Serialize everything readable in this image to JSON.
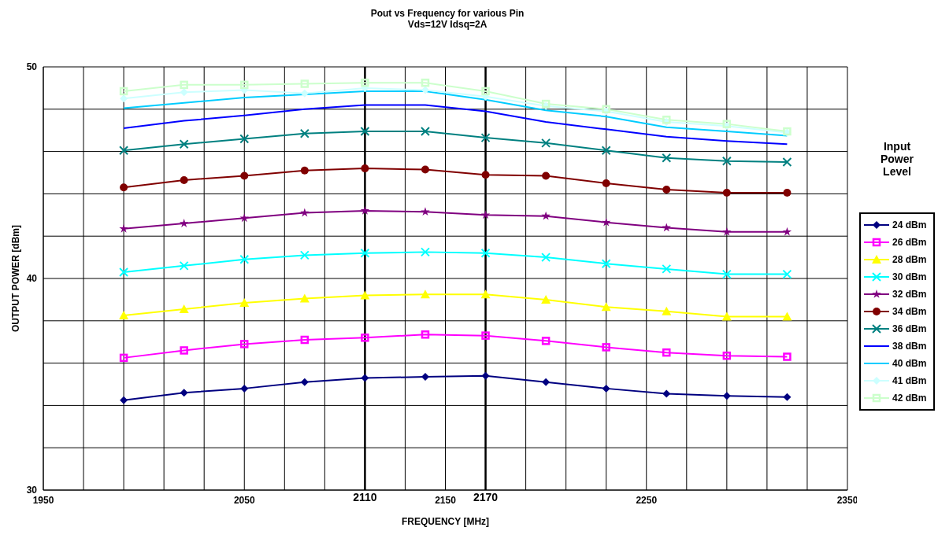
{
  "chart_data": {
    "type": "line",
    "title": "Pout vs Frequency for various Pin",
    "subtitle": "Vds=12V Idsq=2A",
    "xlabel": "FREQUENCY [MHz]",
    "ylabel": "OUTPUT POWER [dBm]",
    "legend_title": "Input Power Level",
    "x": [
      1990,
      2020,
      2050,
      2080,
      2110,
      2140,
      2170,
      2200,
      2230,
      2260,
      2290,
      2320
    ],
    "series": [
      {
        "name": "24 dBm",
        "color": "#000080",
        "marker": "diamond",
        "values": [
          34.25,
          34.6,
          34.8,
          35.1,
          35.3,
          35.35,
          35.4,
          35.1,
          34.8,
          34.55,
          34.45,
          34.4
        ]
      },
      {
        "name": "26 dBm",
        "color": "#ff00ff",
        "marker": "square",
        "values": [
          36.25,
          36.6,
          36.9,
          37.1,
          37.2,
          37.35,
          37.3,
          37.05,
          36.75,
          36.5,
          36.35,
          36.3
        ]
      },
      {
        "name": "28 dBm",
        "color": "#ffff00",
        "marker": "triangle",
        "values": [
          38.25,
          38.55,
          38.85,
          39.05,
          39.2,
          39.25,
          39.25,
          39.0,
          38.65,
          38.45,
          38.2,
          38.2
        ]
      },
      {
        "name": "30 dBm",
        "color": "#00ffff",
        "marker": "cross",
        "values": [
          40.3,
          40.6,
          40.9,
          41.1,
          41.2,
          41.25,
          41.2,
          41.0,
          40.7,
          40.45,
          40.2,
          40.2
        ]
      },
      {
        "name": "32 dBm",
        "color": "#800080",
        "marker": "star",
        "values": [
          42.35,
          42.6,
          42.85,
          43.1,
          43.2,
          43.15,
          43.0,
          42.95,
          42.65,
          42.4,
          42.2,
          42.2
        ]
      },
      {
        "name": "34 dBm",
        "color": "#800000",
        "marker": "circle",
        "values": [
          44.3,
          44.65,
          44.85,
          45.1,
          45.2,
          45.15,
          44.9,
          44.85,
          44.5,
          44.2,
          44.05,
          44.05
        ]
      },
      {
        "name": "36 dBm",
        "color": "#008080",
        "marker": "cross",
        "values": [
          46.05,
          46.35,
          46.6,
          46.85,
          46.95,
          46.95,
          46.65,
          46.4,
          46.05,
          45.7,
          45.55,
          45.5
        ]
      },
      {
        "name": "38 dBm",
        "color": "#0000ff",
        "marker": "none",
        "values": [
          47.1,
          47.45,
          47.7,
          48.0,
          48.2,
          48.2,
          47.9,
          47.4,
          47.05,
          46.7,
          46.5,
          46.35
        ]
      },
      {
        "name": "40 dBm",
        "color": "#00ccff",
        "marker": "none",
        "values": [
          48.05,
          48.3,
          48.55,
          48.7,
          48.85,
          48.85,
          48.45,
          47.95,
          47.65,
          47.15,
          46.95,
          46.75
        ]
      },
      {
        "name": "41 dBm",
        "color": "#ccffff",
        "marker": "diamond",
        "values": [
          48.5,
          48.8,
          48.9,
          48.75,
          49.0,
          48.9,
          48.6,
          48.15,
          47.9,
          47.4,
          47.2,
          46.9
        ]
      },
      {
        "name": "42 dBm",
        "color": "#ccffcc",
        "marker": "square",
        "values": [
          48.85,
          49.15,
          49.15,
          49.2,
          49.25,
          49.25,
          48.85,
          48.25,
          48.0,
          47.5,
          47.3,
          46.95
        ]
      }
    ],
    "xlim": [
      1950,
      2350
    ],
    "xticks": [
      1950,
      {
        "value": 1970,
        "label": null
      },
      {
        "value": 1990,
        "label": null
      },
      {
        "value": 2010,
        "label": null
      },
      {
        "value": 2030,
        "label": null
      },
      2050,
      {
        "value": 2070,
        "label": null
      },
      {
        "value": 2090,
        "label": null
      },
      {
        "value": 2130,
        "label": null
      },
      2150,
      {
        "value": 2190,
        "label": null
      },
      {
        "value": 2210,
        "label": null
      },
      {
        "value": 2230,
        "label": null
      },
      2250,
      {
        "value": 2270,
        "label": null
      },
      {
        "value": 2290,
        "label": null
      },
      {
        "value": 2310,
        "label": null
      },
      {
        "value": 2330,
        "label": null
      },
      2350
    ],
    "ylim": [
      30,
      50
    ],
    "yticks": [
      30,
      {
        "value": 32,
        "label": null
      },
      {
        "value": 34,
        "label": null
      },
      {
        "value": 36,
        "label": null
      },
      {
        "value": 38,
        "label": null
      },
      40,
      {
        "value": 42,
        "label": null
      },
      {
        "value": 44,
        "label": null
      },
      {
        "value": 46,
        "label": null
      },
      {
        "value": 48,
        "label": null
      },
      50
    ],
    "ref_lines": [
      {
        "axis": "x",
        "value": 2110,
        "label": "2110",
        "color": "#000000"
      },
      {
        "axis": "x",
        "value": 2170,
        "label": "2170",
        "color": "#000000"
      }
    ],
    "grid": true,
    "legend": "right",
    "line_style": "solid"
  }
}
